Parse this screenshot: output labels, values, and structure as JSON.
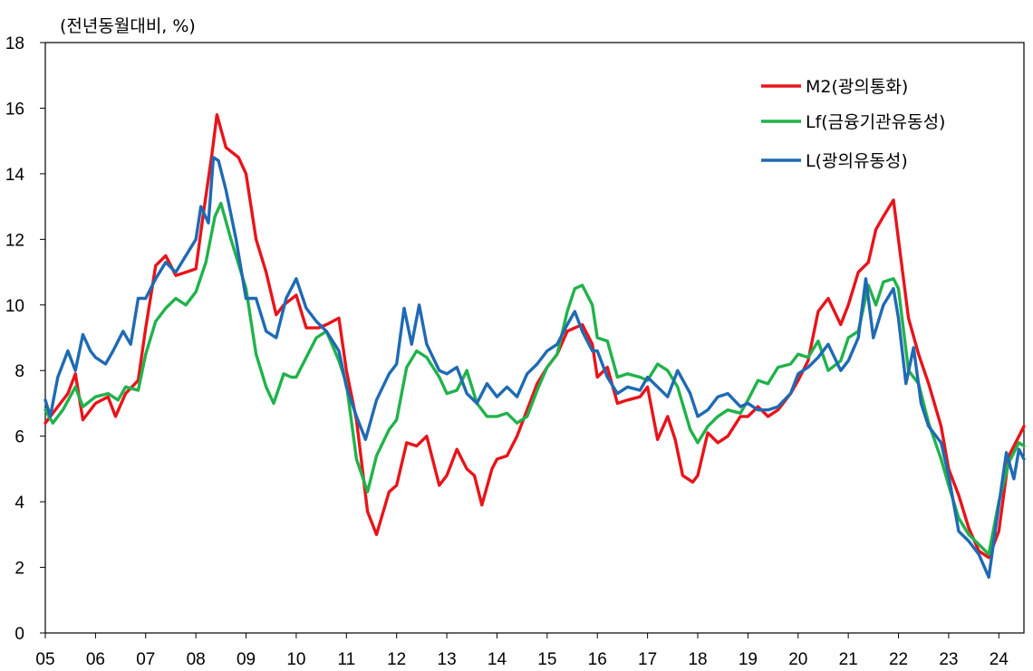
{
  "chart_data": {
    "type": "line",
    "title": "",
    "unit_label": "(전년동월대비,  %)",
    "xlabel": "",
    "ylabel": "",
    "ylim": [
      0,
      18
    ],
    "xlim": [
      2005.0,
      2024.5
    ],
    "yticks": [
      "0",
      "2",
      "4",
      "6",
      "8",
      "10",
      "12",
      "14",
      "16",
      "18"
    ],
    "xticks": [
      "05",
      "06",
      "07",
      "08",
      "09",
      "10",
      "11",
      "12",
      "13",
      "14",
      "15",
      "16",
      "17",
      "18",
      "19",
      "20",
      "21",
      "22",
      "23",
      "24"
    ],
    "legend_position": "top-right",
    "series": [
      {
        "name": "M2(광의통화)",
        "color": "#e8141b",
        "x": [
          2005.0,
          2005.25,
          2005.45,
          2005.6,
          2005.75,
          2006.0,
          2006.25,
          2006.4,
          2006.6,
          2006.85,
          2007.0,
          2007.2,
          2007.4,
          2007.6,
          2007.8,
          2008.0,
          2008.15,
          2008.32,
          2008.42,
          2008.6,
          2008.85,
          2009.0,
          2009.2,
          2009.4,
          2009.6,
          2009.75,
          2010.0,
          2010.2,
          2010.45,
          2010.6,
          2010.85,
          2011.0,
          2011.2,
          2011.42,
          2011.6,
          2011.85,
          2012.0,
          2012.2,
          2012.4,
          2012.6,
          2012.85,
          2013.0,
          2013.2,
          2013.4,
          2013.55,
          2013.7,
          2013.9,
          2014.0,
          2014.2,
          2014.4,
          2014.6,
          2014.8,
          2015.0,
          2015.2,
          2015.4,
          2015.55,
          2015.7,
          2015.9,
          2016.0,
          2016.2,
          2016.4,
          2016.6,
          2016.85,
          2017.0,
          2017.2,
          2017.4,
          2017.55,
          2017.7,
          2017.9,
          2018.0,
          2018.2,
          2018.4,
          2018.6,
          2018.85,
          2019.0,
          2019.2,
          2019.4,
          2019.6,
          2019.85,
          2020.0,
          2020.2,
          2020.4,
          2020.6,
          2020.85,
          2021.0,
          2021.2,
          2021.4,
          2021.55,
          2021.7,
          2021.9,
          2022.0,
          2022.2,
          2022.4,
          2022.6,
          2022.85,
          2023.0,
          2023.2,
          2023.4,
          2023.6,
          2023.8,
          2024.0,
          2024.2,
          2024.4,
          2024.5
        ],
        "values": [
          6.4,
          6.9,
          7.3,
          7.9,
          6.5,
          7.0,
          7.2,
          6.6,
          7.3,
          7.7,
          9.3,
          11.2,
          11.5,
          10.9,
          11.0,
          11.1,
          12.8,
          14.6,
          15.8,
          14.8,
          14.5,
          14.0,
          12.0,
          11.0,
          9.7,
          10.0,
          10.3,
          9.3,
          9.3,
          9.4,
          9.6,
          8.0,
          6.5,
          3.7,
          3.0,
          4.3,
          4.5,
          5.8,
          5.7,
          6.0,
          4.5,
          4.8,
          5.6,
          5.0,
          4.8,
          3.9,
          5.0,
          5.3,
          5.4,
          6.0,
          6.8,
          7.6,
          8.1,
          8.5,
          9.2,
          9.3,
          9.4,
          8.8,
          7.8,
          8.1,
          7.0,
          7.1,
          7.2,
          7.5,
          5.9,
          6.6,
          5.9,
          4.8,
          4.6,
          4.8,
          6.1,
          5.8,
          6.0,
          6.6,
          6.6,
          6.9,
          6.6,
          6.8,
          7.3,
          7.7,
          8.3,
          9.8,
          10.2,
          9.4,
          10.0,
          11.0,
          11.3,
          12.3,
          12.7,
          13.2,
          12.0,
          9.6,
          8.5,
          7.6,
          6.3,
          5.0,
          4.2,
          3.2,
          2.5,
          2.3,
          3.1,
          5.4,
          6.0,
          6.3
        ]
      },
      {
        "name": "Lf(금융기관유동성)",
        "color": "#21b24b",
        "x": [
          2005.0,
          2005.15,
          2005.35,
          2005.6,
          2005.75,
          2006.0,
          2006.25,
          2006.45,
          2006.6,
          2006.85,
          2007.0,
          2007.2,
          2007.4,
          2007.6,
          2007.8,
          2008.0,
          2008.2,
          2008.38,
          2008.5,
          2008.7,
          2008.9,
          2009.0,
          2009.2,
          2009.4,
          2009.55,
          2009.75,
          2009.9,
          2010.0,
          2010.2,
          2010.4,
          2010.6,
          2010.85,
          2011.0,
          2011.2,
          2011.42,
          2011.6,
          2011.85,
          2012.0,
          2012.2,
          2012.4,
          2012.6,
          2012.85,
          2013.0,
          2013.2,
          2013.4,
          2013.6,
          2013.8,
          2014.0,
          2014.2,
          2014.4,
          2014.6,
          2014.8,
          2015.0,
          2015.2,
          2015.4,
          2015.55,
          2015.7,
          2015.9,
          2016.0,
          2016.2,
          2016.4,
          2016.6,
          2016.85,
          2017.0,
          2017.2,
          2017.4,
          2017.6,
          2017.85,
          2018.0,
          2018.2,
          2018.4,
          2018.6,
          2018.85,
          2019.0,
          2019.2,
          2019.4,
          2019.6,
          2019.85,
          2020.0,
          2020.2,
          2020.4,
          2020.6,
          2020.85,
          2021.0,
          2021.2,
          2021.4,
          2021.55,
          2021.7,
          2021.9,
          2022.0,
          2022.2,
          2022.4,
          2022.6,
          2022.85,
          2023.0,
          2023.2,
          2023.4,
          2023.6,
          2023.8,
          2024.0,
          2024.2,
          2024.4,
          2024.5
        ],
        "values": [
          6.8,
          6.4,
          6.8,
          7.5,
          6.9,
          7.2,
          7.3,
          7.1,
          7.5,
          7.4,
          8.5,
          9.5,
          9.9,
          10.2,
          10.0,
          10.4,
          11.3,
          12.7,
          13.1,
          12.0,
          11.0,
          10.5,
          8.5,
          7.5,
          7.0,
          7.9,
          7.8,
          7.8,
          8.4,
          9.0,
          9.2,
          8.3,
          7.6,
          5.3,
          4.3,
          5.4,
          6.2,
          6.5,
          8.1,
          8.6,
          8.4,
          7.8,
          7.3,
          7.4,
          8.0,
          7.0,
          6.6,
          6.6,
          6.7,
          6.4,
          6.6,
          7.4,
          8.1,
          8.5,
          9.8,
          10.5,
          10.6,
          10.0,
          9.0,
          8.9,
          7.8,
          7.9,
          7.8,
          7.7,
          8.2,
          8.0,
          7.5,
          6.2,
          5.8,
          6.3,
          6.6,
          6.8,
          6.7,
          7.1,
          7.7,
          7.6,
          8.1,
          8.2,
          8.5,
          8.4,
          8.9,
          8.0,
          8.3,
          9.0,
          9.2,
          10.6,
          10.0,
          10.7,
          10.8,
          10.5,
          8.0,
          7.6,
          6.4,
          5.3,
          4.5,
          3.5,
          3.0,
          2.7,
          2.4,
          4.0,
          5.2,
          5.8,
          5.7
        ]
      },
      {
        "name": "L(광의유동성)",
        "color": "#1f6ab3",
        "x": [
          2005.0,
          2005.1,
          2005.25,
          2005.45,
          2005.6,
          2005.75,
          2005.9,
          2006.0,
          2006.2,
          2006.35,
          2006.55,
          2006.7,
          2006.85,
          2007.0,
          2007.2,
          2007.4,
          2007.6,
          2007.8,
          2008.0,
          2008.1,
          2008.25,
          2008.35,
          2008.45,
          2008.6,
          2008.8,
          2009.0,
          2009.2,
          2009.4,
          2009.6,
          2009.8,
          2010.0,
          2010.2,
          2010.4,
          2010.6,
          2010.85,
          2011.0,
          2011.2,
          2011.38,
          2011.6,
          2011.85,
          2012.0,
          2012.15,
          2012.3,
          2012.45,
          2012.6,
          2012.85,
          2013.0,
          2013.2,
          2013.4,
          2013.6,
          2013.8,
          2014.0,
          2014.2,
          2014.4,
          2014.6,
          2014.8,
          2015.0,
          2015.2,
          2015.4,
          2015.55,
          2015.7,
          2015.9,
          2016.0,
          2016.2,
          2016.4,
          2016.6,
          2016.85,
          2017.0,
          2017.2,
          2017.4,
          2017.6,
          2017.85,
          2018.0,
          2018.2,
          2018.4,
          2018.6,
          2018.85,
          2019.0,
          2019.2,
          2019.4,
          2019.6,
          2019.85,
          2020.0,
          2020.2,
          2020.4,
          2020.6,
          2020.85,
          2021.0,
          2021.2,
          2021.35,
          2021.5,
          2021.7,
          2021.9,
          2022.0,
          2022.15,
          2022.3,
          2022.45,
          2022.6,
          2022.85,
          2023.0,
          2023.2,
          2023.4,
          2023.6,
          2023.8,
          2024.0,
          2024.15,
          2024.3,
          2024.4,
          2024.5
        ],
        "values": [
          7.1,
          6.6,
          7.8,
          8.6,
          8.0,
          9.1,
          8.6,
          8.4,
          8.2,
          8.6,
          9.2,
          8.8,
          10.2,
          10.2,
          10.8,
          11.3,
          11.0,
          11.5,
          12.0,
          13.0,
          12.5,
          14.5,
          14.4,
          13.5,
          12.0,
          10.2,
          10.2,
          9.2,
          9.0,
          10.2,
          10.8,
          9.9,
          9.5,
          9.2,
          8.6,
          7.5,
          6.6,
          5.9,
          7.1,
          7.9,
          8.2,
          9.9,
          8.8,
          10.0,
          8.8,
          8.0,
          7.9,
          8.1,
          7.3,
          7.0,
          7.6,
          7.2,
          7.5,
          7.2,
          7.9,
          8.2,
          8.6,
          8.8,
          9.4,
          9.8,
          9.2,
          8.6,
          8.6,
          7.8,
          7.3,
          7.5,
          7.4,
          7.8,
          7.5,
          7.2,
          8.0,
          7.3,
          6.6,
          6.8,
          7.2,
          7.3,
          6.9,
          7.0,
          6.8,
          6.8,
          6.9,
          7.3,
          7.9,
          8.1,
          8.4,
          8.8,
          8.0,
          8.3,
          9.0,
          10.8,
          9.0,
          10.0,
          10.5,
          9.6,
          7.6,
          8.7,
          7.0,
          6.3,
          5.8,
          4.8,
          3.1,
          2.8,
          2.4,
          1.7,
          3.9,
          5.5,
          4.7,
          5.6,
          5.3
        ]
      }
    ]
  }
}
